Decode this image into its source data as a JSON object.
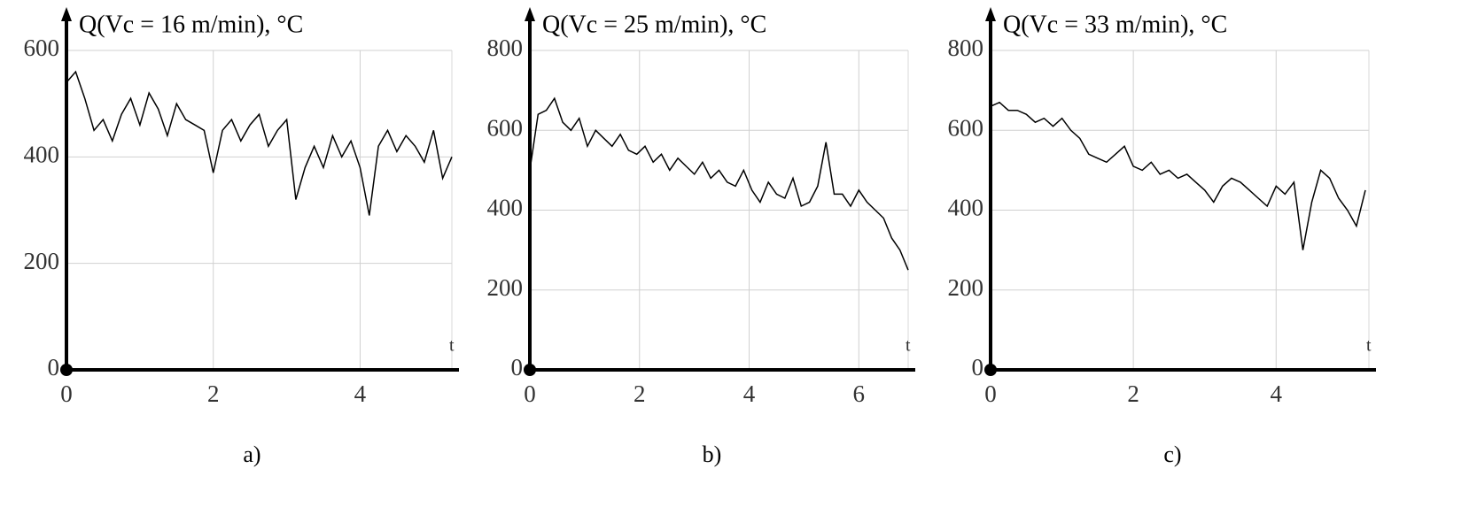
{
  "chart_data": [
    {
      "type": "line",
      "title": "Q(Vc = 16 m/min), °C",
      "x_label": "t",
      "caption": "a)",
      "xlim": [
        0,
        5.25
      ],
      "xticks": [
        0,
        2,
        4
      ],
      "ylim": [
        0,
        600
      ],
      "yticks": [
        0,
        200,
        400,
        600
      ],
      "grid": true,
      "series": [
        {
          "color": "#000000",
          "x": [
            0,
            0.125,
            0.25,
            0.375,
            0.5,
            0.625,
            0.75,
            0.875,
            1,
            1.125,
            1.25,
            1.375,
            1.5,
            1.625,
            1.75,
            1.875,
            2,
            2.125,
            2.25,
            2.375,
            2.5,
            2.625,
            2.75,
            2.875,
            3,
            3.125,
            3.25,
            3.375,
            3.5,
            3.625,
            3.75,
            3.875,
            4,
            4.125,
            4.25,
            4.375,
            4.5,
            4.625,
            4.75,
            4.875,
            5,
            5.125,
            5.25
          ],
          "values": [
            540,
            560,
            510,
            450,
            470,
            430,
            480,
            510,
            460,
            520,
            490,
            440,
            500,
            470,
            460,
            450,
            370,
            450,
            470,
            430,
            460,
            480,
            420,
            450,
            470,
            320,
            380,
            420,
            380,
            440,
            400,
            430,
            380,
            290,
            420,
            450,
            410,
            440,
            420,
            390,
            450,
            360,
            400
          ]
        }
      ]
    },
    {
      "type": "line",
      "title": "Q(Vc = 25 m/min), °C",
      "x_label": "t",
      "caption": "b)",
      "xlim": [
        0,
        6.9
      ],
      "xticks": [
        0,
        2,
        4,
        6
      ],
      "ylim": [
        0,
        800
      ],
      "yticks": [
        0,
        200,
        400,
        600,
        800
      ],
      "grid": true,
      "series": [
        {
          "color": "#000000",
          "x": [
            0,
            0.15,
            0.3,
            0.45,
            0.6,
            0.75,
            0.9,
            1.05,
            1.2,
            1.35,
            1.5,
            1.65,
            1.8,
            1.95,
            2.1,
            2.25,
            2.4,
            2.55,
            2.7,
            2.85,
            3,
            3.15,
            3.3,
            3.45,
            3.6,
            3.75,
            3.9,
            4.05,
            4.2,
            4.35,
            4.5,
            4.65,
            4.8,
            4.95,
            5.1,
            5.25,
            5.4,
            5.55,
            5.7,
            5.85,
            6,
            6.15,
            6.3,
            6.45,
            6.6,
            6.75,
            6.9
          ],
          "values": [
            500,
            640,
            650,
            680,
            620,
            600,
            630,
            560,
            600,
            580,
            560,
            590,
            550,
            540,
            560,
            520,
            540,
            500,
            530,
            510,
            490,
            520,
            480,
            500,
            470,
            460,
            500,
            450,
            420,
            470,
            440,
            430,
            480,
            410,
            420,
            460,
            570,
            440,
            440,
            410,
            450,
            420,
            400,
            380,
            330,
            300,
            250
          ]
        }
      ]
    },
    {
      "type": "line",
      "title": "Q(Vc = 33 m/min), °C",
      "x_label": "t",
      "caption": "c)",
      "xlim": [
        0,
        5.3
      ],
      "xticks": [
        0,
        2,
        4
      ],
      "ylim": [
        0,
        800
      ],
      "yticks": [
        0,
        200,
        400,
        600,
        800
      ],
      "grid": true,
      "series": [
        {
          "color": "#000000",
          "x": [
            0,
            0.125,
            0.25,
            0.375,
            0.5,
            0.625,
            0.75,
            0.875,
            1,
            1.125,
            1.25,
            1.375,
            1.5,
            1.625,
            1.75,
            1.875,
            2,
            2.125,
            2.25,
            2.375,
            2.5,
            2.625,
            2.75,
            2.875,
            3,
            3.125,
            3.25,
            3.375,
            3.5,
            3.625,
            3.75,
            3.875,
            4,
            4.125,
            4.25,
            4.375,
            4.5,
            4.625,
            4.75,
            4.875,
            5,
            5.125,
            5.25
          ],
          "values": [
            660,
            670,
            650,
            650,
            640,
            620,
            630,
            610,
            630,
            600,
            580,
            540,
            530,
            520,
            540,
            560,
            510,
            500,
            520,
            490,
            500,
            480,
            490,
            470,
            450,
            420,
            460,
            480,
            470,
            450,
            430,
            410,
            460,
            440,
            470,
            300,
            420,
            500,
            480,
            430,
            400,
            360,
            450
          ]
        }
      ]
    }
  ]
}
